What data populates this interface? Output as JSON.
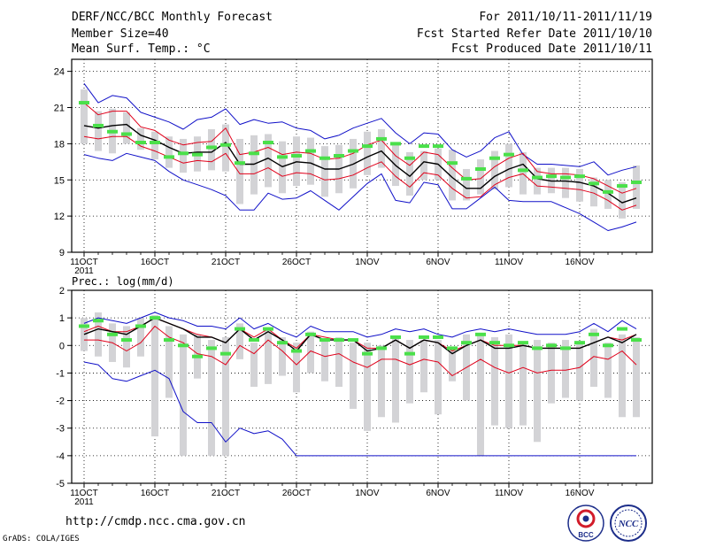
{
  "header": {
    "title": "DERF/NCC/BCC Monthly Forecast",
    "member_size": "Member Size=40",
    "variable": "Mean Surf. Temp.: °C",
    "period": "For 2011/10/11-2011/11/19",
    "started": "Fcst Started Refer Date 2011/10/10",
    "produced": "Fcst Produced Date 2011/10/11"
  },
  "footer": {
    "url": "http://cmdp.ncc.cma.gov.cn",
    "credit": "GrADS: COLA/IGES",
    "logo_bcc": "BCC",
    "logo_ncc": "NCC"
  },
  "colors": {
    "box": "#d3d3d6",
    "mean": "#000000",
    "spread": "#e0001a",
    "envelope": "#1010c8",
    "observed": "#4ae04a",
    "grid": "#000000"
  },
  "chart_data": [
    {
      "type": "line",
      "title": "Mean Surf. Temp.: °C",
      "ylabel": "°C",
      "ylim": [
        9,
        25
      ],
      "yticks": [
        "9",
        "12",
        "15",
        "18",
        "21",
        "24"
      ],
      "xticks": [
        "11OCT",
        "16OCT",
        "21OCT",
        "26OCT",
        "1NOV",
        "6NOV",
        "11NOV",
        "16NOV"
      ],
      "year_label": "2011",
      "x": [
        1,
        2,
        3,
        4,
        5,
        6,
        7,
        8,
        9,
        10,
        11,
        12,
        13,
        14,
        15,
        16,
        17,
        18,
        19,
        20,
        21,
        22,
        23,
        24,
        25,
        26,
        27,
        28,
        29,
        30,
        31,
        32,
        33,
        34,
        35,
        36,
        37,
        38,
        39,
        40
      ],
      "series": [
        {
          "name": "ensemble mean",
          "style": "mean",
          "values": [
            19.5,
            19.3,
            19.5,
            19.6,
            18.7,
            18.3,
            17.7,
            17.2,
            17.3,
            17.3,
            18.1,
            16.3,
            16.3,
            16.8,
            16.1,
            16.5,
            16.4,
            15.9,
            15.9,
            16.3,
            16.9,
            17.4,
            16.2,
            15.3,
            16.5,
            16.3,
            15.2,
            14.3,
            14.3,
            15.3,
            15.9,
            16.3,
            15.1,
            14.9,
            14.9,
            14.8,
            14.5,
            13.9,
            13.1,
            13.5
          ]
        },
        {
          "name": "upper spread",
          "style": "spread",
          "values": [
            21.4,
            20.4,
            20.7,
            20.7,
            19.4,
            19.1,
            18.3,
            17.9,
            18.1,
            18.2,
            19.3,
            17.1,
            17.3,
            17.7,
            17.1,
            17.3,
            17.2,
            16.7,
            16.8,
            17.2,
            17.9,
            18.3,
            17.0,
            16.2,
            17.3,
            17.1,
            16.0,
            15.0,
            15.1,
            16.1,
            16.8,
            17.2,
            15.7,
            15.5,
            15.5,
            15.4,
            15.1,
            14.5,
            13.9,
            14.3
          ]
        },
        {
          "name": "lower spread",
          "style": "spread",
          "values": [
            18.6,
            18.4,
            18.6,
            18.6,
            17.8,
            17.4,
            16.9,
            16.4,
            16.6,
            16.5,
            17.2,
            15.5,
            15.5,
            16.0,
            15.3,
            15.6,
            15.5,
            15.0,
            15.1,
            15.4,
            16.0,
            16.5,
            15.3,
            14.4,
            15.6,
            15.4,
            14.3,
            13.5,
            13.6,
            14.6,
            15.2,
            15.5,
            14.5,
            14.4,
            14.3,
            14.2,
            13.9,
            13.3,
            12.5,
            12.9
          ]
        },
        {
          "name": "ensemble max",
          "style": "envelope",
          "values": [
            23.0,
            21.4,
            22.0,
            21.8,
            20.6,
            20.2,
            19.8,
            19.2,
            20.0,
            20.2,
            20.9,
            19.6,
            20.0,
            19.7,
            19.8,
            19.3,
            19.1,
            18.4,
            18.7,
            19.3,
            19.7,
            20.1,
            18.9,
            18.0,
            18.9,
            18.8,
            17.5,
            16.9,
            17.4,
            18.5,
            19.0,
            17.1,
            16.3,
            16.3,
            16.2,
            16.1,
            16.5,
            15.4,
            15.8,
            16.1
          ]
        },
        {
          "name": "ensemble min",
          "style": "envelope",
          "values": [
            17.1,
            16.8,
            16.6,
            17.2,
            16.9,
            16.6,
            15.7,
            15.0,
            14.6,
            14.2,
            13.7,
            12.5,
            12.5,
            13.9,
            13.4,
            13.5,
            14.1,
            13.3,
            12.5,
            13.6,
            14.7,
            15.5,
            13.3,
            13.1,
            14.8,
            14.6,
            12.6,
            12.6,
            13.5,
            14.4,
            13.3,
            13.2,
            13.2,
            13.2,
            12.7,
            12.2,
            11.5,
            10.8,
            11.1,
            11.5
          ]
        }
      ],
      "boxes": {
        "low": [
          18.0,
          17.4,
          17.2,
          18.0,
          17.5,
          16.7,
          16.0,
          15.6,
          15.7,
          15.8,
          15.7,
          13.0,
          13.8,
          14.4,
          13.9,
          14.5,
          14.6,
          13.6,
          13.9,
          14.3,
          15.4,
          16.0,
          14.5,
          13.7,
          15.0,
          15.0,
          13.3,
          13.3,
          13.8,
          14.2,
          14.4,
          13.8,
          13.8,
          13.9,
          13.5,
          13.2,
          12.8,
          12.6,
          11.8,
          12.6
        ],
        "high": [
          22.5,
          20.7,
          20.9,
          20.6,
          19.3,
          19.0,
          18.6,
          18.4,
          18.6,
          19.2,
          19.6,
          18.4,
          18.7,
          18.8,
          18.2,
          18.6,
          18.5,
          17.8,
          17.9,
          18.4,
          19.0,
          19.2,
          18.1,
          17.3,
          17.4,
          17.6,
          17.5,
          15.9,
          16.7,
          17.4,
          18.0,
          17.3,
          16.0,
          16.0,
          16.0,
          15.9,
          15.2,
          15.0,
          14.8,
          16.2
        ]
      },
      "observed": [
        21.4,
        19.5,
        19.0,
        18.8,
        18.1,
        18.1,
        16.9,
        17.2,
        17.1,
        17.7,
        17.9,
        16.4,
        17.2,
        18.1,
        16.9,
        17.0,
        17.4,
        16.8,
        17.0,
        17.4,
        17.8,
        18.4,
        18.0,
        16.8,
        17.8,
        17.8,
        16.4,
        15.1,
        15.9,
        16.8,
        17.1,
        15.8,
        15.2,
        15.3,
        15.2,
        15.3,
        14.7,
        14.0,
        14.5,
        14.8
      ]
    },
    {
      "type": "line",
      "title": "Prec.: log(mm/d)",
      "ylabel": "log(mm/d)",
      "ylim": [
        -5,
        2
      ],
      "yticks": [
        "-5",
        "-4",
        "-3",
        "-2",
        "-1",
        "0",
        "1",
        "2"
      ],
      "xticks": [
        "11OCT",
        "16OCT",
        "21OCT",
        "26OCT",
        "1NOV",
        "6NOV",
        "11NOV",
        "16NOV"
      ],
      "year_label": "2011",
      "x": [
        1,
        2,
        3,
        4,
        5,
        6,
        7,
        8,
        9,
        10,
        11,
        12,
        13,
        14,
        15,
        16,
        17,
        18,
        19,
        20,
        21,
        22,
        23,
        24,
        25,
        26,
        27,
        28,
        29,
        30,
        31,
        32,
        33,
        34,
        35,
        36,
        37,
        38,
        39,
        40
      ],
      "series": [
        {
          "name": "ensemble mean",
          "style": "mean",
          "values": [
            0.4,
            0.6,
            0.5,
            0.4,
            0.7,
            1.0,
            0.8,
            0.6,
            0.3,
            0.3,
            0.1,
            0.6,
            0.2,
            0.5,
            0.2,
            -0.2,
            0.4,
            0.2,
            0.2,
            0.2,
            -0.2,
            -0.1,
            0.2,
            -0.1,
            0.2,
            0.1,
            -0.3,
            0.0,
            0.2,
            -0.1,
            -0.1,
            0.0,
            -0.1,
            -0.1,
            -0.1,
            -0.1,
            0.1,
            0.3,
            0.1,
            0.4
          ]
        },
        {
          "name": "upper spread",
          "style": "spread",
          "values": [
            0.5,
            0.7,
            0.5,
            0.5,
            0.7,
            1.0,
            0.8,
            0.6,
            0.4,
            0.3,
            0.1,
            0.6,
            0.3,
            0.6,
            0.2,
            -0.1,
            0.4,
            0.3,
            0.2,
            0.2,
            -0.1,
            -0.1,
            0.2,
            -0.1,
            0.2,
            0.1,
            -0.2,
            0.0,
            0.2,
            0.0,
            0.0,
            0.0,
            -0.1,
            -0.1,
            -0.1,
            -0.1,
            0.1,
            0.3,
            0.2,
            0.4
          ]
        },
        {
          "name": "lower spread",
          "style": "spread",
          "values": [
            0.2,
            0.2,
            0.1,
            -0.2,
            0.1,
            0.7,
            0.3,
            0.1,
            -0.3,
            -0.4,
            -0.7,
            0.0,
            -0.3,
            0.2,
            -0.2,
            -0.7,
            -0.2,
            -0.4,
            -0.3,
            -0.6,
            -0.8,
            -0.5,
            -0.5,
            -0.7,
            -0.5,
            -0.6,
            -1.1,
            -0.8,
            -0.5,
            -0.8,
            -1.0,
            -0.8,
            -1.0,
            -0.9,
            -0.9,
            -0.8,
            -0.4,
            -0.5,
            -0.2,
            -0.7
          ]
        },
        {
          "name": "ensemble max",
          "style": "envelope",
          "values": [
            0.8,
            1.0,
            0.9,
            0.8,
            1.0,
            1.2,
            1.0,
            0.9,
            0.7,
            0.7,
            0.6,
            1.0,
            0.6,
            0.8,
            0.5,
            0.3,
            0.7,
            0.5,
            0.5,
            0.5,
            0.3,
            0.4,
            0.6,
            0.5,
            0.6,
            0.4,
            0.3,
            0.5,
            0.6,
            0.5,
            0.6,
            0.5,
            0.4,
            0.4,
            0.4,
            0.5,
            0.8,
            0.5,
            0.9,
            0.6
          ]
        },
        {
          "name": "ensemble min",
          "style": "envelope",
          "values": [
            -0.6,
            -0.7,
            -1.2,
            -1.3,
            -1.1,
            -0.9,
            -1.2,
            -2.4,
            -2.8,
            -2.8,
            -3.5,
            -3.0,
            -3.2,
            -3.1,
            -3.4,
            -4.0,
            -4.0,
            -4.0,
            -4.0,
            -4.0,
            -4.0,
            -4.0,
            -4.0,
            -4.0,
            -4.0,
            -4.0,
            -4.0,
            -4.0,
            -4.0,
            -4.0,
            -4.0,
            -4.0,
            -4.0,
            -4.0,
            -4.0,
            -4.0,
            -4.0,
            -4.0,
            -4.0,
            -4.0
          ]
        }
      ],
      "boxes": {
        "low": [
          -0.2,
          -0.4,
          -0.6,
          -0.8,
          -0.4,
          -3.3,
          -1.9,
          -4.0,
          -1.2,
          -4.0,
          -4.0,
          -0.5,
          -1.5,
          -1.4,
          -1.1,
          -1.7,
          -1.0,
          -1.3,
          -1.5,
          -2.3,
          -3.1,
          -2.6,
          -2.8,
          -2.1,
          -1.7,
          -2.5,
          -1.3,
          -2.0,
          -4.0,
          -2.9,
          -3.0,
          -2.9,
          -3.5,
          -2.1,
          -1.9,
          -2.0,
          -1.5,
          -1.9,
          -2.6,
          -2.6
        ],
        "high": [
          1.0,
          1.2,
          0.8,
          0.7,
          1.0,
          1.1,
          0.7,
          0.4,
          0.4,
          0.2,
          0.3,
          0.8,
          0.1,
          0.6,
          0.3,
          0.1,
          0.5,
          0.2,
          0.3,
          0.1,
          0.1,
          0.0,
          0.3,
          0.2,
          0.2,
          0.2,
          -0.1,
          0.4,
          0.4,
          0.3,
          0.4,
          0.1,
          0.2,
          0.1,
          0.2,
          0.1,
          0.6,
          0.1,
          0.4,
          0.3
        ]
      },
      "observed": [
        0.7,
        0.9,
        0.4,
        0.2,
        0.7,
        1.0,
        0.2,
        0.0,
        -0.4,
        -0.1,
        -0.3,
        0.6,
        0.2,
        0.6,
        0.1,
        -0.2,
        0.4,
        0.2,
        0.2,
        0.2,
        -0.3,
        -0.1,
        0.3,
        -0.3,
        0.3,
        0.3,
        -0.1,
        0.1,
        0.4,
        0.1,
        0.0,
        0.1,
        -0.1,
        0.0,
        -0.1,
        0.1,
        0.4,
        0.0,
        0.6,
        0.2
      ]
    }
  ]
}
